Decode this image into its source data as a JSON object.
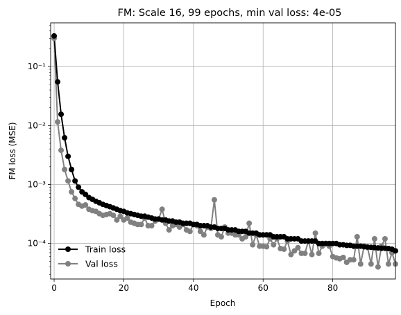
{
  "chart_data": {
    "type": "line",
    "title": "FM: Scale 16, 99 epochs, min val loss: 4e-05",
    "xlabel": "Epoch",
    "ylabel": "FM loss (MSE)",
    "yscale": "log",
    "xlim": [
      -1,
      98
    ],
    "ylim": [
      2.5e-05,
      0.55
    ],
    "grid": true,
    "legend_position": "lower-left",
    "x_ticks": [
      0,
      20,
      40,
      60,
      80
    ],
    "x_tick_labels": [
      "0",
      "20",
      "40",
      "60",
      "80"
    ],
    "y_ticks": [
      0.0001,
      0.001,
      0.01,
      0.1
    ],
    "y_tick_labels": [
      "10⁻⁴",
      "10⁻³",
      "10⁻²",
      "10⁻¹"
    ],
    "series": [
      {
        "name": "Train loss",
        "color": "#000000",
        "values": [
          0.33,
          0.055,
          0.0155,
          0.0062,
          0.003,
          0.0018,
          0.00115,
          0.0009,
          0.00075,
          0.00068,
          0.0006,
          0.00056,
          0.00052,
          0.00049,
          0.00046,
          0.00044,
          0.00042,
          0.0004,
          0.00038,
          0.00036,
          0.00035,
          0.00033,
          0.00032,
          0.00031,
          0.0003,
          0.00029,
          0.00029,
          0.00028,
          0.00027,
          0.00026,
          0.00026,
          0.00025,
          0.00025,
          0.00024,
          0.00024,
          0.00023,
          0.00023,
          0.00022,
          0.00022,
          0.00022,
          0.00021,
          0.00021,
          0.0002,
          0.0002,
          0.0002,
          0.00019,
          0.00019,
          0.00018,
          0.00018,
          0.00018,
          0.00017,
          0.00017,
          0.00017,
          0.00016,
          0.00016,
          0.00016,
          0.00015,
          0.00015,
          0.00015,
          0.00014,
          0.00014,
          0.00014,
          0.00014,
          0.00013,
          0.00013,
          0.00013,
          0.00013,
          0.00012,
          0.00012,
          0.00012,
          0.00012,
          0.00011,
          0.00011,
          0.00011,
          0.00011,
          0.00011,
          0.0001,
          0.0001,
          0.0001,
          0.0001,
          0.0001,
          0.0001,
          9.5e-05,
          9.5e-05,
          9.3e-05,
          9.3e-05,
          9e-05,
          9e-05,
          9e-05,
          8.8e-05,
          8.7e-05,
          8.6e-05,
          8.5e-05,
          8.4e-05,
          8.3e-05,
          8.3e-05,
          8.2e-05,
          8e-05,
          7.5e-05
        ]
      },
      {
        "name": "Val loss",
        "color": "#808080",
        "values": [
          0.3,
          0.0115,
          0.0038,
          0.0018,
          0.00115,
          0.00075,
          0.00058,
          0.00046,
          0.00043,
          0.00045,
          0.00038,
          0.00036,
          0.00035,
          0.00032,
          0.0003,
          0.00031,
          0.00032,
          0.0003,
          0.00025,
          0.00029,
          0.00025,
          0.00027,
          0.00023,
          0.00022,
          0.00021,
          0.00021,
          0.00027,
          0.0002,
          0.0002,
          0.00024,
          0.00026,
          0.00038,
          0.00022,
          0.00017,
          0.0002,
          0.00021,
          0.00019,
          0.00021,
          0.00017,
          0.00016,
          0.00021,
          0.0002,
          0.00016,
          0.00014,
          0.00019,
          0.00018,
          0.00055,
          0.00014,
          0.00013,
          0.00019,
          0.00015,
          0.00015,
          0.00014,
          0.00014,
          0.00012,
          0.00013,
          0.00022,
          9.5e-05,
          0.00014,
          9e-05,
          9e-05,
          8.8e-05,
          0.00012,
          9.5e-05,
          0.00012,
          8.2e-05,
          8e-05,
          0.00011,
          6.5e-05,
          7.5e-05,
          8.5e-05,
          6.8e-05,
          6.8e-05,
          0.00011,
          6.5e-05,
          0.00015,
          6.8e-05,
          9e-05,
          0.0001,
          9e-05,
          6e-05,
          5.7e-05,
          5.5e-05,
          5.8e-05,
          4.8e-05,
          5.3e-05,
          5.3e-05,
          0.00013,
          4.5e-05,
          9e-05,
          8.5e-05,
          4.5e-05,
          0.00012,
          4e-05,
          9e-05,
          0.00012,
          4.5e-05,
          7e-05,
          4.5e-05
        ]
      }
    ]
  }
}
